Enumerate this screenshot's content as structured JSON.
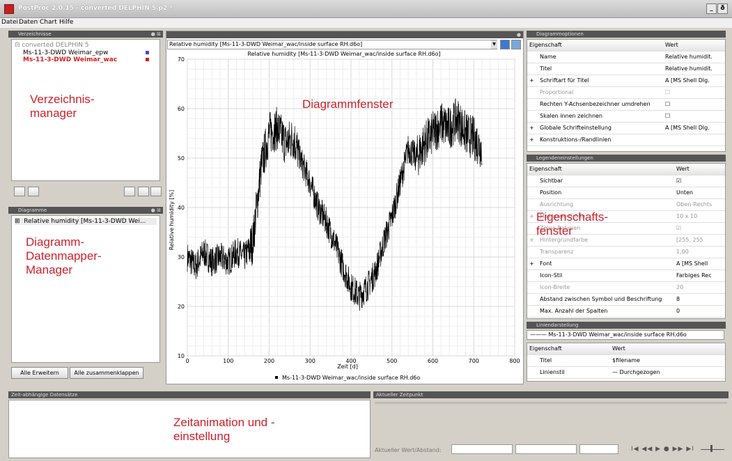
{
  "window": {
    "title": "PostProc 2.0.15 - converted DELPHIN 5.p2 *",
    "min": "_",
    "restore": "ð",
    "close": "×"
  },
  "menu": [
    "Datei",
    "Daten",
    "Chart",
    "Hilfe"
  ],
  "dirpanel": {
    "title": "Verzeichnisse",
    "root": "converted DELPHIN 5",
    "items": [
      {
        "label": "Ms-11-3-DWD Weimar_epw",
        "color": "#3050e0"
      },
      {
        "label": "Ms-11-3-DWD Weimar_wac",
        "color": "#d02020"
      }
    ]
  },
  "diagpanel": {
    "title": "Diagramme",
    "item": "Relative humidity [Ms-11-3-DWD Wei...",
    "expand_all": "Alle Erweitern",
    "collapse_all": "Alle zusammenklappen"
  },
  "labels": {
    "dir": "Verzeichnis-\nmanager",
    "diag": "Diagramm-\nDatenmapper-\nManager",
    "chart": "Diagrammfenster",
    "props": "Eigenschafts-\nfenster",
    "anim": "Zeitanimation und -\neinstellung"
  },
  "chartwin": {
    "combo": "Relative humidity [Ms-11-3-DWD Weimar_wac/inside surface RH.d6o]"
  },
  "chart_data": {
    "type": "line",
    "title": "Relative humidity [Ms-11-3-DWD Weimar_wac/inside surface RH.d6o]",
    "xlabel": "Zeit [d]",
    "ylabel": "Relative humidity [%]",
    "xlim": [
      0,
      800
    ],
    "ylim": [
      10,
      70
    ],
    "xticks": [
      0,
      100,
      200,
      300,
      400,
      500,
      600,
      700,
      800
    ],
    "yticks": [
      10,
      20,
      30,
      40,
      50,
      60,
      70
    ],
    "grid": true,
    "legend": "bottom",
    "series": [
      {
        "name": "Ms-11-3-DWD Weimar_wac/inside surface RH.d6o",
        "x": [
          0,
          20,
          40,
          60,
          80,
          100,
          120,
          140,
          160,
          180,
          200,
          220,
          240,
          260,
          280,
          300,
          320,
          340,
          360,
          380,
          400,
          420,
          440,
          460,
          480,
          500,
          520,
          540,
          560,
          580,
          600,
          620,
          640,
          660,
          680,
          700,
          720
        ],
        "y": [
          30,
          28,
          31,
          29,
          30,
          29,
          31,
          30,
          33,
          48,
          55,
          56,
          53,
          54,
          49,
          45,
          40,
          37,
          33,
          28,
          24,
          22,
          24,
          27,
          33,
          38,
          45,
          52,
          50,
          53,
          55,
          57,
          56,
          58,
          55,
          54,
          52
        ]
      }
    ]
  },
  "diagopts": {
    "title": "Diagrammoptionen",
    "col1": "Eigenschaft",
    "col2": "Wert",
    "rows": [
      {
        "k": "Name",
        "v": "Relative humidit.",
        "exp": "",
        "gray": false
      },
      {
        "k": "Titel",
        "v": "Relative humidit.",
        "exp": "",
        "gray": false
      },
      {
        "k": "Schriftart für Titel",
        "v": "A [MS Shell Dlg.",
        "exp": "+",
        "gray": false
      },
      {
        "k": "Proportional",
        "v": "☐",
        "exp": "",
        "gray": true
      },
      {
        "k": "Rechten Y-Achsenbezeichner umdrehen",
        "v": "☐",
        "exp": "",
        "gray": false
      },
      {
        "k": "Skalen innen zeichnen",
        "v": "☐",
        "exp": "",
        "gray": false
      },
      {
        "k": "Globale Schrifteinstellung",
        "v": "A [MS Shell Dlg.",
        "exp": "+",
        "gray": false
      },
      {
        "k": "Konstruktions-/Randlinien",
        "v": "",
        "exp": "+",
        "gray": false
      }
    ]
  },
  "legend": {
    "title": "Legendeneinstellungen",
    "col1": "Eigenschaft",
    "col2": "Wert",
    "rows": [
      {
        "k": "Sichtbar",
        "v": "☑",
        "exp": "",
        "gray": false
      },
      {
        "k": "Position",
        "v": "Unten",
        "exp": "",
        "gray": false
      },
      {
        "k": "Ausrichtung",
        "v": "Oben-Rechts",
        "exp": "",
        "gray": true
      },
      {
        "k": "Maximale Größe",
        "v": "10 x 10",
        "exp": "+",
        "gray": true
      },
      {
        "k": "Zeige Rahmen",
        "v": "☑",
        "exp": "",
        "gray": true
      },
      {
        "k": "Hintergrundfarbe",
        "v": "[255, 255",
        "exp": "+",
        "gray": true
      },
      {
        "k": "Transparenz",
        "v": "1,00",
        "exp": "",
        "gray": true
      },
      {
        "k": "Font",
        "v": "A [MS Shell",
        "exp": "+",
        "gray": false
      },
      {
        "k": "Icon-Stil",
        "v": "Farbiges Rec",
        "exp": "",
        "gray": false
      },
      {
        "k": "Icon-Breite",
        "v": "20",
        "exp": "",
        "gray": true
      },
      {
        "k": "Abstand zwischen Symbol und Beschriftung",
        "v": "8",
        "exp": "",
        "gray": false
      },
      {
        "k": "Max. Anzahl der Spalten",
        "v": "0",
        "exp": "",
        "gray": false
      }
    ]
  },
  "lines": {
    "title": "Liniendarstellung",
    "combo": "Ms-11-3-DWD Weimar_wac/inside surface RH.d6o",
    "col1": "Eigenschaft",
    "col2": "Wert",
    "rows": [
      {
        "k": "Titel",
        "v": "$filename"
      },
      {
        "k": "Linienstil",
        "v": "— Durchgezogen"
      }
    ]
  },
  "bottom": {
    "left_title": "Zeit-abhängige Datensätze",
    "right_title": "Aktueller Zeitpunkt",
    "value_label": "Aktueller Wert/Abstand:",
    "player": "I◀ ◀◀ ▶ ● ▶▶ ▶I"
  }
}
